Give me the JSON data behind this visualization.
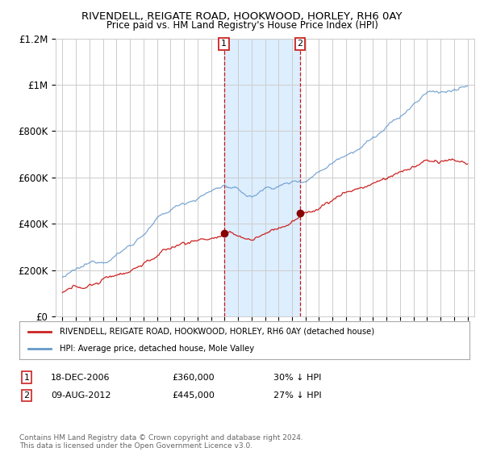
{
  "title": "RIVENDELL, REIGATE ROAD, HOOKWOOD, HORLEY, RH6 0AY",
  "subtitle": "Price paid vs. HM Land Registry's House Price Index (HPI)",
  "hpi_color": "#6699cc",
  "price_color": "#cc2222",
  "marker_color": "#880000",
  "bg_color": "#ffffff",
  "grid_color": "#cccccc",
  "highlight_color": "#ddeeff",
  "sale1_x": 2006.96,
  "sale1_y": 360000,
  "sale1_label": "1",
  "sale1_date": "18-DEC-2006",
  "sale1_price": "£360,000",
  "sale1_note": "30% ↓ HPI",
  "sale2_x": 2012.6,
  "sale2_y": 445000,
  "sale2_label": "2",
  "sale2_date": "09-AUG-2012",
  "sale2_price": "£445,000",
  "sale2_note": "27% ↓ HPI",
  "ylim_min": 0,
  "ylim_max": 1200000,
  "xmin": 1994.5,
  "xmax": 2025.5,
  "yticks": [
    0,
    200000,
    400000,
    600000,
    800000,
    1000000,
    1200000
  ],
  "ylabels": [
    "£0",
    "£200K",
    "£400K",
    "£600K",
    "£800K",
    "£1M",
    "£1.2M"
  ],
  "legend_line1": "RIVENDELL, REIGATE ROAD, HOOKWOOD, HORLEY, RH6 0AY (detached house)",
  "legend_line2": "HPI: Average price, detached house, Mole Valley",
  "footer": "Contains HM Land Registry data © Crown copyright and database right 2024.\nThis data is licensed under the Open Government Licence v3.0."
}
